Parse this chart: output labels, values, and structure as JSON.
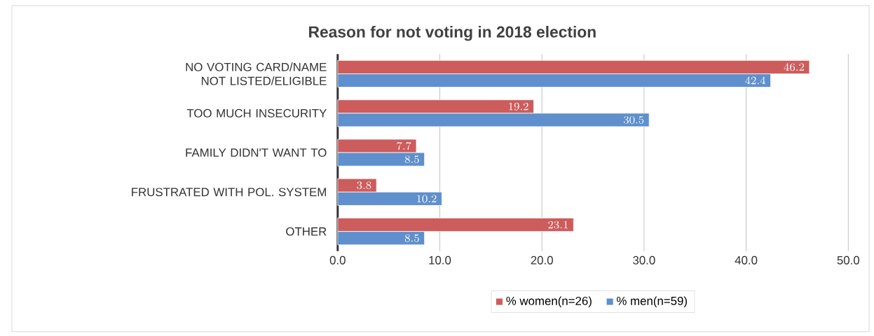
{
  "chart_data": {
    "type": "bar",
    "orientation": "horizontal",
    "title": "Reason for not voting in 2018 election",
    "categories": [
      "NO VOTING CARD/NAME NOT LISTED/ELIGIBLE",
      "TOO MUCH INSECURITY",
      "FAMILY DIDN'T WANT TO",
      "FRUSTRATED WITH POL. SYSTEM",
      "OTHER"
    ],
    "series": [
      {
        "name": "% women(n=26)",
        "color": "#cd5c5c",
        "values": [
          46.2,
          19.2,
          7.7,
          3.8,
          23.1
        ]
      },
      {
        "name": "% men(n=59)",
        "color": "#5f8fcc",
        "values": [
          42.4,
          30.5,
          8.5,
          10.2,
          8.5
        ]
      }
    ],
    "xlim": [
      0,
      50
    ],
    "xticks": [
      {
        "value": 0,
        "label": "0.0"
      },
      {
        "value": 10,
        "label": "10.0"
      },
      {
        "value": 20,
        "label": "20.0"
      },
      {
        "value": 30,
        "label": "30.0"
      },
      {
        "value": 40,
        "label": "40.0"
      },
      {
        "value": 50,
        "label": "50.0"
      }
    ],
    "grid": "x",
    "legend": "bottom",
    "data_labels": true
  }
}
